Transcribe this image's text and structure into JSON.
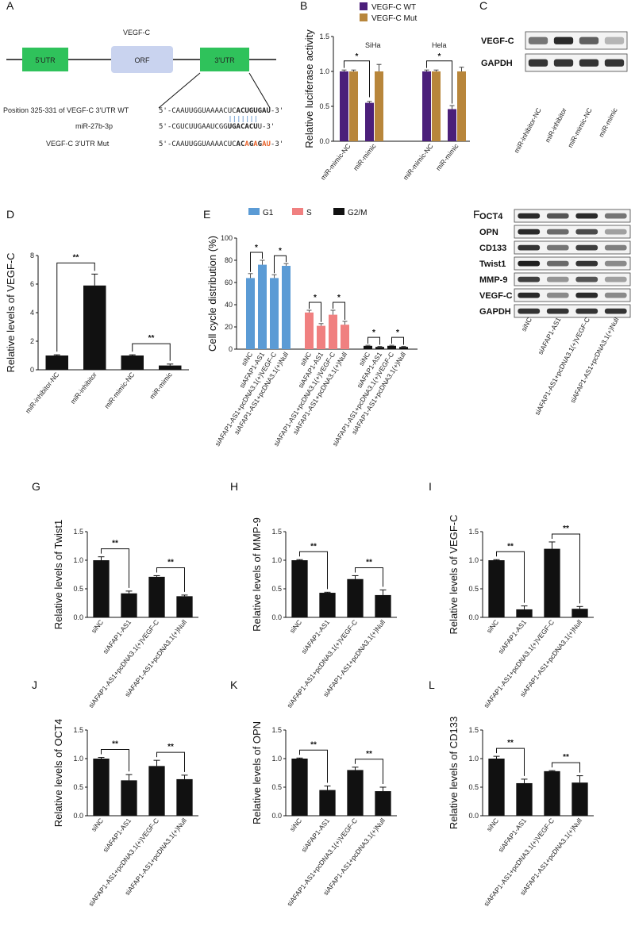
{
  "panels": {
    "A": {
      "label": "A",
      "gene_label": "VEGF-C",
      "utr5": "5'UTR",
      "orf": "ORF",
      "utr3": "3'UTR",
      "rows": [
        {
          "left": "Position 325-331 of VEGF-C 3'UTR WT",
          "pre": "5'-CAAUUGGUAAAACUC",
          "bold": "ACUGUGAU",
          "post": "-3'"
        },
        {
          "left": "miR-27b-3p",
          "pre": "5'-CGUCUUGAAUCGG",
          "bold": "UGACACU",
          "post": "U-3'"
        },
        {
          "left": "VEGF-C 3'UTR Mut",
          "pre": "5'-CAAUUGGUAAAACUC",
          "mut": [
            "AC",
            "A",
            "G",
            "A",
            "G",
            "AU"
          ],
          "post": "-3'"
        }
      ],
      "colors": {
        "utr": "#2fc25b",
        "orf": "#c9d3ef",
        "mut": "#e8632b"
      }
    },
    "B": {
      "label": "B"
    },
    "C": {
      "label": "C",
      "blots": [
        "VEGF-C",
        "GAPDH"
      ],
      "lanes": [
        "miR-inhibitor-NC",
        "miR-inhibitor",
        "miR-mimic-NC",
        "miR-mimic"
      ],
      "intensity": [
        [
          0.55,
          0.9,
          0.65,
          0.25
        ],
        [
          0.85,
          0.85,
          0.85,
          0.85
        ]
      ]
    },
    "D": {
      "label": "D"
    },
    "E": {
      "label": "E"
    },
    "F": {
      "label": "F",
      "blots": [
        "OCT4",
        "OPN",
        "CD133",
        "Twist1",
        "MMP-9",
        "VEGF-C",
        "GAPDH"
      ],
      "lanes": [
        "siNC",
        "siAFAP1-AS1",
        "siAFAP1-AS1+pcDNA3.1(+)VEGF-C",
        "siAFAP1-AS1+pcDNA3.1(+)Null"
      ],
      "intensity": [
        [
          0.9,
          0.7,
          0.9,
          0.55
        ],
        [
          0.9,
          0.6,
          0.75,
          0.35
        ],
        [
          0.85,
          0.55,
          0.8,
          0.5
        ],
        [
          0.95,
          0.6,
          0.85,
          0.45
        ],
        [
          0.8,
          0.4,
          0.7,
          0.35
        ],
        [
          0.9,
          0.45,
          0.9,
          0.45
        ],
        [
          0.85,
          0.85,
          0.85,
          0.85
        ]
      ]
    },
    "G": {
      "label": "G"
    },
    "H": {
      "label": "H"
    },
    "I": {
      "label": "I"
    },
    "J": {
      "label": "J"
    },
    "K": {
      "label": "K"
    },
    "L": {
      "label": "L"
    }
  },
  "chart_data": [
    {
      "id": "B",
      "type": "bar",
      "ylabel": "Relative luciferase activity",
      "ylim": [
        0,
        1.5
      ],
      "yticks": [
        "0.0",
        "0.5",
        "1.0",
        "1.5"
      ],
      "groups": [
        "SiHa",
        "Hela"
      ],
      "categories": [
        "miR-mimic-NC",
        "miR-mimic",
        "miR-mimic-NC",
        "miR-mimic"
      ],
      "series": [
        {
          "name": "VEGF-C WT",
          "color": "#4b1f7a",
          "values": [
            1.0,
            0.55,
            1.0,
            0.46
          ],
          "errors": [
            0.02,
            0.02,
            0.02,
            0.05
          ]
        },
        {
          "name": "VEGF-C Mut",
          "color": "#b8863b",
          "values": [
            1.0,
            1.0,
            1.0,
            1.0
          ],
          "errors": [
            0.02,
            0.1,
            0.02,
            0.06
          ]
        }
      ],
      "sig": [
        {
          "label": "*"
        },
        {
          "label": "*"
        }
      ]
    },
    {
      "id": "D",
      "type": "bar",
      "ylabel": "Relative levels of VEGF-C",
      "ylim": [
        0,
        8
      ],
      "yticks": [
        "0",
        "2",
        "4",
        "6",
        "8"
      ],
      "categories": [
        "miR-inhibitor-NC",
        "miR-inhibitor",
        "miR-mimic-NC",
        "miR-mimic"
      ],
      "values": [
        1.0,
        5.9,
        1.0,
        0.3
      ],
      "errors": [
        0.05,
        0.8,
        0.05,
        0.1
      ],
      "sig": [
        {
          "label": "**"
        },
        {
          "label": "**"
        }
      ]
    },
    {
      "id": "E",
      "type": "bar",
      "ylabel": "Cell cycle distribution (%)",
      "ylim": [
        0,
        100
      ],
      "yticks": [
        "0",
        "20",
        "40",
        "60",
        "80",
        "100"
      ],
      "categories": [
        "siNC",
        "siAFAP1-AS1",
        "siAFAP1-AS1+pcDNA3.1(+)VEGF-C",
        "siAFAP1-AS1+pcDNA3.1(+)Null"
      ],
      "series": [
        {
          "name": "G1",
          "color": "#5b9bd5",
          "values": [
            64,
            76,
            64,
            75
          ],
          "errors": [
            4,
            4,
            3,
            2
          ]
        },
        {
          "name": "S",
          "color": "#f08080",
          "values": [
            33,
            21,
            31,
            22
          ],
          "errors": [
            2,
            2,
            4,
            3
          ]
        },
        {
          "name": "G2/M",
          "color": "#111111",
          "values": [
            3,
            2,
            3,
            2
          ],
          "errors": [
            0.5,
            0.5,
            0.5,
            0.5
          ]
        }
      ],
      "sig": [
        {
          "label": "*"
        },
        {
          "label": "*"
        },
        {
          "label": "*"
        },
        {
          "label": "*"
        },
        {
          "label": "*"
        },
        {
          "label": "*"
        }
      ]
    },
    {
      "id": "G",
      "type": "bar",
      "ylabel": "Relative levels of Twist1",
      "ylim": [
        0,
        1.5
      ],
      "yticks": [
        "0.0",
        "0.5",
        "1.0",
        "1.5"
      ],
      "categories": [
        "siNC",
        "siAFAP1-AS1",
        "siAFAP1-AS1+pcDNA3.1(+)VEGF-C",
        "siAFAP1-AS1+pcDNA3.1(+)Null"
      ],
      "values": [
        1.0,
        0.42,
        0.71,
        0.37
      ],
      "errors": [
        0.06,
        0.04,
        0.02,
        0.02
      ],
      "sig": [
        {
          "label": "**"
        },
        {
          "label": "**"
        }
      ]
    },
    {
      "id": "H",
      "type": "bar",
      "ylabel": "Relative levels of  MMP-9",
      "ylim": [
        0,
        1.5
      ],
      "yticks": [
        "0.0",
        "0.5",
        "1.0",
        "1.5"
      ],
      "categories": [
        "siNC",
        "siAFAP1-AS1",
        "siAFAP1-AS1+pcDNA3.1(+)VEGF-C",
        "siAFAP1-AS1+pcDNA3.1(+)Null"
      ],
      "values": [
        1.0,
        0.43,
        0.67,
        0.39
      ],
      "errors": [
        0.01,
        0.01,
        0.06,
        0.09
      ],
      "sig": [
        {
          "label": "**"
        },
        {
          "label": "**"
        }
      ]
    },
    {
      "id": "I",
      "type": "bar",
      "ylabel": "Relative levels of  VEGF-C",
      "ylim": [
        0,
        1.5
      ],
      "yticks": [
        "0.0",
        "0.5",
        "1.0",
        "1.5"
      ],
      "categories": [
        "siNC",
        "siAFAP1-AS1",
        "siAFAP1-AS1+pcDNA3.1(+)VEGF-C",
        "siAFAP1-AS1+pcDNA3.1(+)Null"
      ],
      "values": [
        1.0,
        0.14,
        1.2,
        0.15
      ],
      "errors": [
        0.01,
        0.06,
        0.12,
        0.04
      ],
      "sig": [
        {
          "label": "**"
        },
        {
          "label": "**"
        }
      ]
    },
    {
      "id": "J",
      "type": "bar",
      "ylabel": "Relative levels of OCT4",
      "ylim": [
        0,
        1.5
      ],
      "yticks": [
        "0.0",
        "0.5",
        "1.0",
        "1.5"
      ],
      "categories": [
        "siNC",
        "siAFAP1-AS1",
        "siAFAP1-AS1+pcDNA3.1(+)VEGF-C",
        "siAFAP1-AS1+pcDNA3.1(+)Null"
      ],
      "values": [
        1.0,
        0.62,
        0.87,
        0.64
      ],
      "errors": [
        0.02,
        0.1,
        0.1,
        0.07
      ],
      "sig": [
        {
          "label": "**"
        },
        {
          "label": "**"
        }
      ]
    },
    {
      "id": "K",
      "type": "bar",
      "ylabel": "Relative levels of OPN",
      "ylim": [
        0,
        1.5
      ],
      "yticks": [
        "0.0",
        "0.5",
        "1.0",
        "1.5"
      ],
      "categories": [
        "siNC",
        "siAFAP1-AS1",
        "siAFAP1-AS1+pcDNA3.1(+)VEGF-C",
        "siAFAP1-AS1+pcDNA3.1(+)Null"
      ],
      "values": [
        1.0,
        0.45,
        0.8,
        0.43
      ],
      "errors": [
        0.01,
        0.07,
        0.05,
        0.07
      ],
      "sig": [
        {
          "label": "**"
        },
        {
          "label": "**"
        }
      ]
    },
    {
      "id": "L",
      "type": "bar",
      "ylabel": "Relative levels of CD133",
      "ylim": [
        0,
        1.5
      ],
      "yticks": [
        "0.0",
        "0.5",
        "1.0",
        "1.5"
      ],
      "categories": [
        "siNC",
        "siAFAP1-AS1",
        "siAFAP1-AS1+pcDNA3.1(+)VEGF-C",
        "siAFAP1-AS1+pcDNA3.1(+)Null"
      ],
      "values": [
        1.0,
        0.57,
        0.78,
        0.58
      ],
      "errors": [
        0.04,
        0.07,
        0.01,
        0.12
      ],
      "sig": [
        {
          "label": "**"
        },
        {
          "label": "**"
        }
      ]
    }
  ]
}
